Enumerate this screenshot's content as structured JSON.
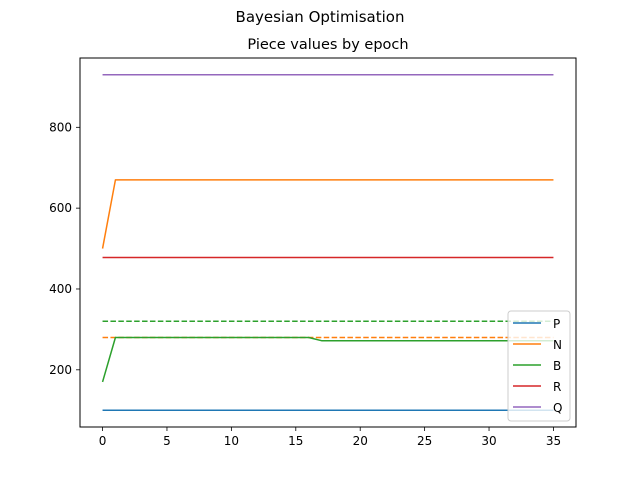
{
  "figure": {
    "suptitle": "Bayesian Optimisation"
  },
  "chart_data": {
    "type": "line",
    "title": "Piece values by epoch",
    "xlabel": "",
    "ylabel": "",
    "xlim": [
      -1.75,
      36.75
    ],
    "ylim": [
      58.5,
      971.5
    ],
    "xticks": [
      0,
      5,
      10,
      15,
      20,
      25,
      30,
      35
    ],
    "yticks": [
      200,
      400,
      600,
      800
    ],
    "grid": false,
    "legend_position": "lower-right",
    "series": [
      {
        "name": "P",
        "color": "#1f77b4",
        "style": "solid",
        "x": [
          0,
          35
        ],
        "y": [
          100,
          100
        ]
      },
      {
        "name": "N",
        "color": "#ff7f0e",
        "style": "solid",
        "x": [
          0,
          1,
          35
        ],
        "y": [
          500,
          670,
          670
        ]
      },
      {
        "name": "B",
        "color": "#2ca02c",
        "style": "solid",
        "x": [
          0,
          1,
          16,
          17,
          35
        ],
        "y": [
          170,
          280,
          280,
          272,
          272
        ]
      },
      {
        "name": "R",
        "color": "#d62728",
        "style": "solid",
        "x": [
          0,
          35
        ],
        "y": [
          478,
          478
        ]
      },
      {
        "name": "Q",
        "color": "#9467bd",
        "style": "solid",
        "x": [
          0,
          35
        ],
        "y": [
          930,
          930
        ]
      }
    ],
    "reference_lines": [
      {
        "color": "#2ca02c",
        "style": "dashed",
        "x": [
          0,
          35
        ],
        "y": [
          320,
          320
        ]
      },
      {
        "color": "#ff7f0e",
        "style": "dashed",
        "x": [
          0,
          35
        ],
        "y": [
          280,
          280
        ]
      }
    ]
  }
}
